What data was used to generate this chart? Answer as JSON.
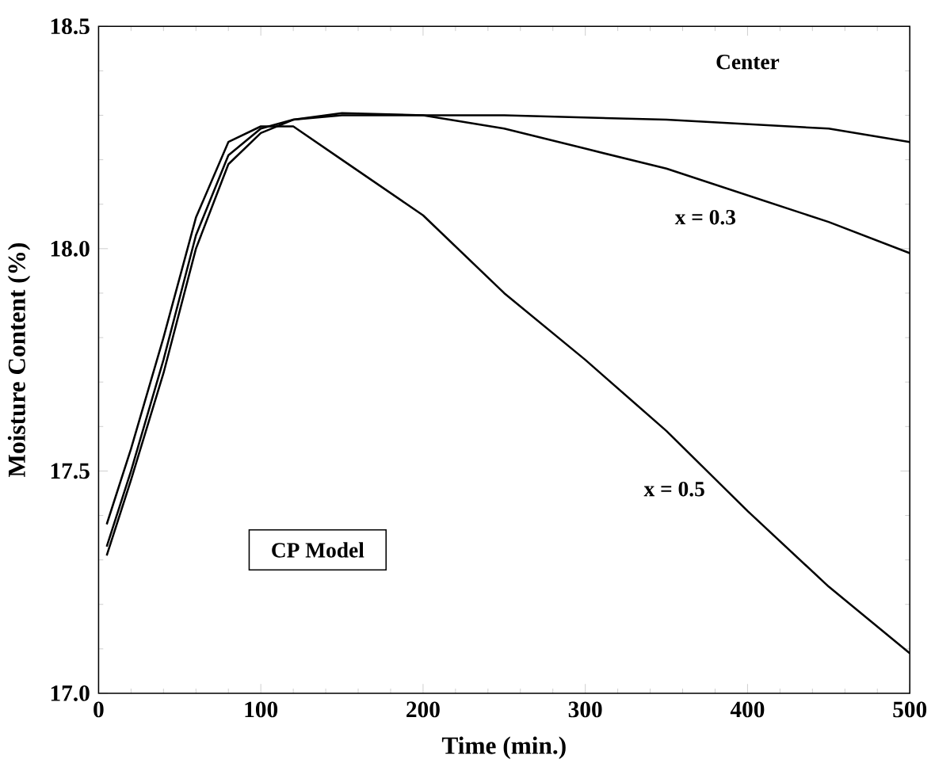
{
  "chart_data": {
    "type": "line",
    "xlabel": "Time  (min.)",
    "ylabel": "Moisture Content  (%)",
    "x": [
      5,
      20,
      40,
      60,
      80,
      100,
      120,
      150,
      200,
      250,
      300,
      350,
      400,
      450,
      500
    ],
    "series": [
      {
        "name": "Center",
        "color": "#000000",
        "values": [
          17.31,
          17.48,
          17.72,
          18.0,
          18.19,
          18.26,
          18.29,
          18.305,
          18.3,
          18.3,
          18.295,
          18.29,
          18.28,
          18.27,
          18.24
        ]
      },
      {
        "name": "x = 0.3",
        "color": "#000000",
        "values": [
          17.33,
          17.5,
          17.75,
          18.03,
          18.21,
          18.27,
          18.29,
          18.3,
          18.3,
          18.27,
          18.225,
          18.18,
          18.12,
          18.06,
          17.99
        ]
      },
      {
        "name": "x = 0.5",
        "color": "#000000",
        "values": [
          17.38,
          17.55,
          17.8,
          18.07,
          18.24,
          18.275,
          18.275,
          18.2,
          18.075,
          17.9,
          17.75,
          17.59,
          17.41,
          17.24,
          17.09
        ]
      }
    ],
    "xlim": [
      0,
      500
    ],
    "xticks": [
      0,
      100,
      200,
      300,
      400,
      500
    ],
    "ylim": [
      17.0,
      18.5
    ],
    "yticks": [
      {
        "value": 17.0,
        "label": "17.0"
      },
      17.5,
      {
        "value": 18.0,
        "label": "18.0"
      },
      18.5
    ],
    "marker": "none",
    "line_style": "solid",
    "grid": false,
    "legend": false,
    "annotations": [
      "CP Model"
    ]
  }
}
